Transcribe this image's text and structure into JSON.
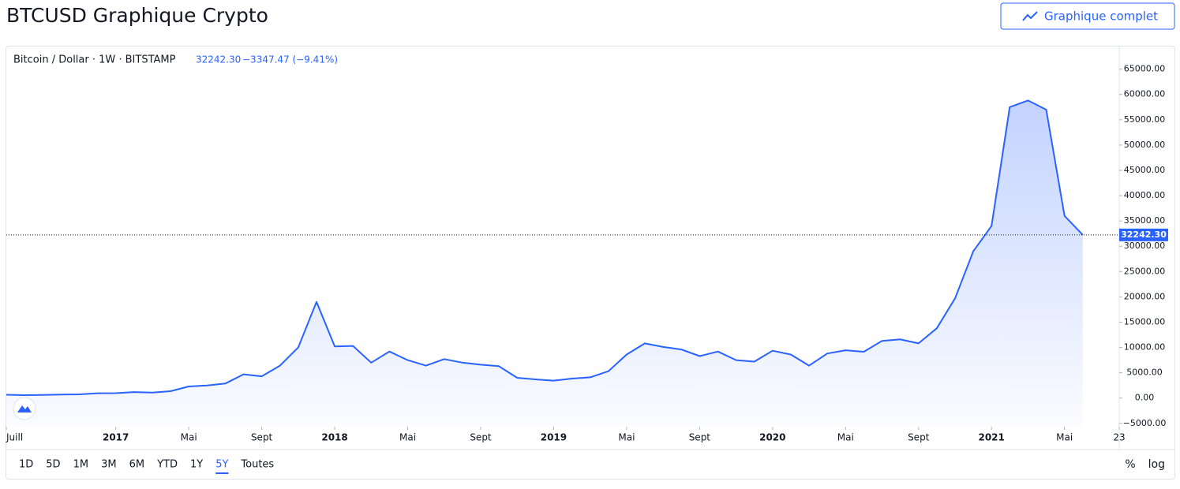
{
  "header": {
    "title": "BTCUSD Graphique Crypto",
    "button": "Graphique complet"
  },
  "legend": {
    "symbol": "Bitcoin / Dollar · 1W · BITSTAMP",
    "price": "32242.30",
    "change": "−3347.47 (−9.41%)"
  },
  "chart_data": {
    "type": "area",
    "color": "#2962ff",
    "x": [
      "2016-07",
      "2016-08",
      "2016-09",
      "2016-10",
      "2016-11",
      "2016-12",
      "2017-01",
      "2017-02",
      "2017-03",
      "2017-04",
      "2017-05",
      "2017-06",
      "2017-07",
      "2017-08",
      "2017-09",
      "2017-10",
      "2017-11",
      "2017-12",
      "2018-01",
      "2018-02",
      "2018-03",
      "2018-04",
      "2018-05",
      "2018-06",
      "2018-07",
      "2018-08",
      "2018-09",
      "2018-10",
      "2018-11",
      "2018-12",
      "2019-01",
      "2019-02",
      "2019-03",
      "2019-04",
      "2019-05",
      "2019-06",
      "2019-07",
      "2019-08",
      "2019-09",
      "2019-10",
      "2019-11",
      "2019-12",
      "2020-01",
      "2020-02",
      "2020-03",
      "2020-04",
      "2020-05",
      "2020-06",
      "2020-07",
      "2020-08",
      "2020-09",
      "2020-10",
      "2020-11",
      "2020-12",
      "2021-01",
      "2021-02",
      "2021-03",
      "2021-04",
      "2021-05",
      "2021-06"
    ],
    "values": [
      650,
      580,
      610,
      700,
      740,
      960,
      970,
      1190,
      1080,
      1350,
      2300,
      2500,
      2870,
      4700,
      4300,
      6400,
      10000,
      19000,
      10200,
      10300,
      7000,
      9200,
      7500,
      6400,
      7700,
      7000,
      6600,
      6300,
      4000,
      3700,
      3450,
      3850,
      4100,
      5300,
      8600,
      10800,
      10100,
      9600,
      8300,
      9200,
      7500,
      7200,
      9350,
      8600,
      6400,
      8800,
      9450,
      9150,
      11300,
      11600,
      10800,
      13800,
      19700,
      29000,
      34000,
      57500,
      58800,
      57000,
      36000,
      32242.3
    ],
    "xlim": [
      "2016-07",
      "2021-08"
    ],
    "xticks": [
      {
        "value": "2016-07",
        "label": "Juill"
      },
      {
        "value": "2017-01",
        "label": "2017"
      },
      {
        "value": "2017-05",
        "label": "Mai"
      },
      {
        "value": "2017-09",
        "label": "Sept"
      },
      {
        "value": "2018-01",
        "label": "2018"
      },
      {
        "value": "2018-05",
        "label": "Mai"
      },
      {
        "value": "2018-09",
        "label": "Sept"
      },
      {
        "value": "2019-01",
        "label": "2019"
      },
      {
        "value": "2019-05",
        "label": "Mai"
      },
      {
        "value": "2019-09",
        "label": "Sept"
      },
      {
        "value": "2020-01",
        "label": "2020"
      },
      {
        "value": "2020-05",
        "label": "Mai"
      },
      {
        "value": "2020-09",
        "label": "Sept"
      },
      {
        "value": "2021-01",
        "label": "2021"
      },
      {
        "value": "2021-05",
        "label": "Mai"
      },
      {
        "value": "2021-08",
        "label": "23"
      }
    ],
    "ylim": [
      -5500,
      69000
    ],
    "yticks": [
      {
        "value": -5000,
        "label": "−5000.00"
      },
      {
        "value": 0,
        "label": "0.00"
      },
      {
        "value": 5000,
        "label": "5000.00"
      },
      {
        "value": 10000,
        "label": "10000.00"
      },
      {
        "value": 15000,
        "label": "15000.00"
      },
      {
        "value": 20000,
        "label": "20000.00"
      },
      {
        "value": 25000,
        "label": "25000.00"
      },
      {
        "value": 30000,
        "label": "30000.00"
      },
      {
        "value": 35000,
        "label": "35000.00"
      },
      {
        "value": 40000,
        "label": "40000.00"
      },
      {
        "value": 45000,
        "label": "45000.00"
      },
      {
        "value": 50000,
        "label": "50000.00"
      },
      {
        "value": 55000,
        "label": "55000.00"
      },
      {
        "value": 60000,
        "label": "60000.00"
      },
      {
        "value": 65000,
        "label": "65000.00"
      }
    ]
  },
  "toolbar": {
    "ranges": [
      "1D",
      "5D",
      "1M",
      "3M",
      "6M",
      "YTD",
      "1Y",
      "5Y",
      "Toutes"
    ],
    "active": "5Y",
    "right": [
      "%",
      "log"
    ]
  }
}
